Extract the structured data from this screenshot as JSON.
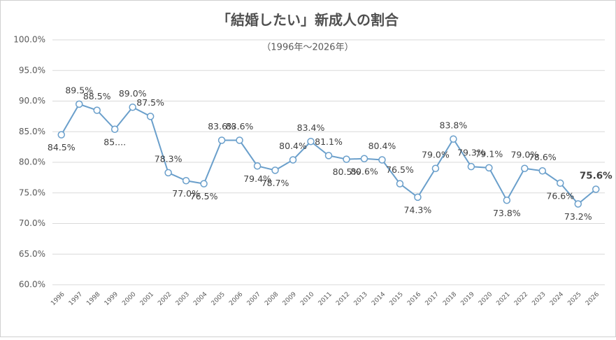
{
  "chart_data": {
    "type": "line",
    "title": "「結婚したい」新成人の割合",
    "subtitle": "（1996年～2026年）",
    "categories": [
      "1996",
      "1997",
      "1998",
      "1999",
      "2000",
      "2001",
      "2002",
      "2003",
      "2004",
      "2005",
      "2006",
      "2007",
      "2008",
      "2009",
      "2010",
      "2011",
      "2012",
      "2013",
      "2014",
      "2015",
      "2016",
      "2017",
      "2018",
      "2019",
      "2020",
      "2021",
      "2022",
      "2023",
      "2024",
      "2025",
      "2026"
    ],
    "series": [
      {
        "color": "#6a9fcb",
        "values": [
          84.5,
          89.5,
          88.5,
          85.4,
          89.0,
          87.5,
          78.3,
          77.0,
          76.5,
          83.6,
          83.6,
          79.4,
          78.7,
          80.4,
          83.4,
          81.1,
          80.5,
          80.6,
          80.4,
          76.5,
          74.3,
          79.0,
          83.8,
          79.3,
          79.1,
          73.8,
          79.0,
          78.6,
          76.6,
          73.2,
          75.6
        ],
        "value_labels": [
          "84.5%",
          "89.5%",
          "88.5%",
          "85....",
          "89.0%",
          "87.5%",
          "78.3%",
          "77.0%",
          "76.5%",
          "83.6%",
          "83.6%",
          "79.4%",
          "78.7%",
          "80.4%",
          "83.4%",
          "81.1%",
          "80.5%",
          "80.6%",
          "80.4%",
          "76.5%",
          "74.3%",
          "79.0%",
          "83.8%",
          "79.3%",
          "79.1%",
          "73.8%",
          "79.0%",
          "78.6%",
          "76.6%",
          "73.2%",
          "75.6%"
        ]
      }
    ],
    "ylim": [
      60,
      100
    ],
    "yticks": [
      {
        "value": 60,
        "label": "60.0%"
      },
      {
        "value": 65,
        "label": "65.0%"
      },
      {
        "value": 70,
        "label": "70.0%"
      },
      {
        "value": 75,
        "label": "75.0%"
      },
      {
        "value": 80,
        "label": "80.0%"
      },
      {
        "value": 85,
        "label": "85.0%"
      },
      {
        "value": 90,
        "label": "90.0%"
      },
      {
        "value": 95,
        "label": "95.0%"
      },
      {
        "value": 100,
        "label": "100.0%"
      }
    ],
    "grid": true
  }
}
